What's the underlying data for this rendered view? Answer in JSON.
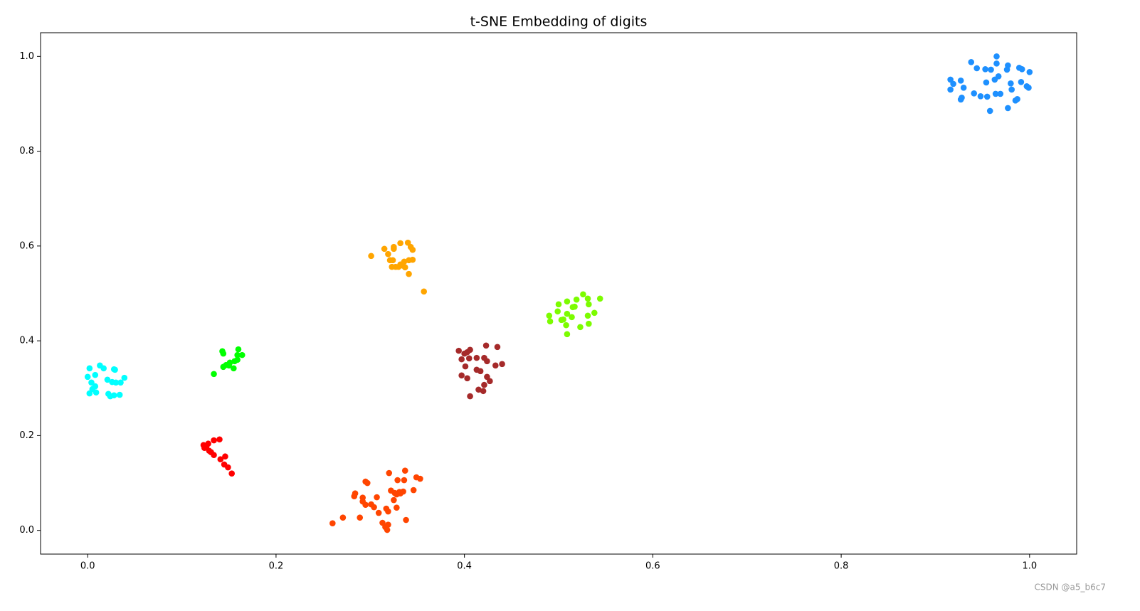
{
  "chart_data": {
    "type": "scatter",
    "title": "t-SNE Embedding of digits",
    "xlim": [
      -0.05,
      1.05
    ],
    "ylim": [
      -0.05,
      1.05
    ],
    "xticks": [
      {
        "value": 0,
        "label": "0.0"
      },
      {
        "value": 0.2,
        "label": "0.2"
      },
      {
        "value": 0.4,
        "label": "0.4"
      },
      {
        "value": 0.6,
        "label": "0.6"
      },
      {
        "value": 0.8,
        "label": "0.8"
      },
      {
        "value": 1,
        "label": "1.0"
      }
    ],
    "yticks": [
      {
        "value": 0,
        "label": "0.0"
      },
      {
        "value": 0.2,
        "label": "0.2"
      },
      {
        "value": 0.4,
        "label": "0.4"
      },
      {
        "value": 0.6,
        "label": "0.6"
      },
      {
        "value": 0.8,
        "label": "0.8"
      },
      {
        "value": 1,
        "label": "1.0"
      }
    ],
    "grid": false,
    "series": [
      {
        "color": "#1e90ff",
        "x": [
          0.965,
          0.938,
          0.944,
          0.953,
          0.959,
          0.977,
          0.989,
          1.0,
          0.965,
          0.976,
          0.916,
          0.927,
          0.919,
          0.916,
          0.93,
          0.954,
          0.963,
          0.967,
          0.98,
          0.991,
          0.997,
          0.999,
          0.941,
          0.948,
          0.955,
          0.964,
          0.969,
          0.981,
          0.927,
          0.928,
          0.958,
          0.977,
          0.985,
          0.987,
          0.992
        ],
        "values": [
          1.0,
          0.988,
          0.975,
          0.973,
          0.972,
          0.981,
          0.976,
          0.967,
          0.985,
          0.972,
          0.951,
          0.949,
          0.942,
          0.93,
          0.934,
          0.945,
          0.951,
          0.958,
          0.943,
          0.946,
          0.937,
          0.934,
          0.922,
          0.916,
          0.915,
          0.921,
          0.921,
          0.93,
          0.909,
          0.913,
          0.885,
          0.891,
          0.907,
          0.91,
          0.973
        ]
      },
      {
        "color": "#ffa500",
        "x": [
          0.301,
          0.315,
          0.319,
          0.325,
          0.325,
          0.332,
          0.34,
          0.343,
          0.345,
          0.321,
          0.324,
          0.327,
          0.332,
          0.336,
          0.341,
          0.345,
          0.323,
          0.33,
          0.334,
          0.341,
          0.357,
          0.337
        ],
        "values": [
          0.579,
          0.594,
          0.583,
          0.598,
          0.594,
          0.606,
          0.607,
          0.598,
          0.592,
          0.57,
          0.57,
          0.556,
          0.561,
          0.567,
          0.57,
          0.571,
          0.556,
          0.556,
          0.559,
          0.541,
          0.504,
          0.555
        ]
      },
      {
        "color": "#7cfc00",
        "x": [
          0.49,
          0.491,
          0.499,
          0.5,
          0.509,
          0.509,
          0.505,
          0.508,
          0.509,
          0.515,
          0.517,
          0.519,
          0.526,
          0.531,
          0.532,
          0.538,
          0.544,
          0.531,
          0.532,
          0.523,
          0.514,
          0.503
        ],
        "values": [
          0.453,
          0.441,
          0.462,
          0.477,
          0.483,
          0.457,
          0.445,
          0.433,
          0.414,
          0.471,
          0.472,
          0.487,
          0.498,
          0.489,
          0.477,
          0.459,
          0.489,
          0.453,
          0.436,
          0.429,
          0.45,
          0.444
        ]
      },
      {
        "color": "#a52a2a",
        "x": [
          0.394,
          0.4,
          0.403,
          0.406,
          0.397,
          0.405,
          0.413,
          0.421,
          0.423,
          0.435,
          0.424,
          0.433,
          0.44,
          0.401,
          0.413,
          0.417,
          0.424,
          0.427,
          0.421,
          0.415,
          0.42,
          0.406,
          0.397,
          0.403
        ],
        "values": [
          0.379,
          0.373,
          0.376,
          0.381,
          0.361,
          0.363,
          0.364,
          0.364,
          0.39,
          0.387,
          0.357,
          0.348,
          0.351,
          0.346,
          0.339,
          0.336,
          0.324,
          0.315,
          0.307,
          0.297,
          0.294,
          0.283,
          0.327,
          0.321
        ]
      },
      {
        "color": "#00ff00",
        "x": [
          0.134,
          0.143,
          0.144,
          0.144,
          0.147,
          0.151,
          0.155,
          0.156,
          0.159,
          0.159,
          0.16,
          0.164,
          0.15
        ],
        "values": [
          0.33,
          0.378,
          0.373,
          0.345,
          0.349,
          0.354,
          0.342,
          0.357,
          0.36,
          0.37,
          0.382,
          0.37,
          0.348
        ]
      },
      {
        "color": "#00ffff",
        "x": [
          0.002,
          0.013,
          0.017,
          0.028,
          0.008,
          0.039,
          0.0,
          0.021,
          0.004,
          0.008,
          0.026,
          0.03,
          0.035,
          0.002,
          0.009,
          0.022,
          0.024,
          0.028,
          0.034,
          0.029,
          0.005
        ],
        "values": [
          0.342,
          0.348,
          0.342,
          0.34,
          0.328,
          0.322,
          0.324,
          0.318,
          0.312,
          0.304,
          0.313,
          0.312,
          0.312,
          0.289,
          0.291,
          0.288,
          0.283,
          0.285,
          0.286,
          0.339,
          0.298
        ]
      },
      {
        "color": "#ff0000",
        "x": [
          0.123,
          0.126,
          0.128,
          0.124,
          0.129,
          0.134,
          0.14,
          0.134,
          0.141,
          0.146,
          0.145,
          0.149,
          0.153,
          0.131
        ],
        "values": [
          0.18,
          0.177,
          0.183,
          0.174,
          0.168,
          0.19,
          0.192,
          0.159,
          0.15,
          0.156,
          0.139,
          0.133,
          0.12,
          0.165
        ]
      },
      {
        "color": "#ff4500",
        "x": [
          0.26,
          0.271,
          0.284,
          0.283,
          0.289,
          0.292,
          0.295,
          0.295,
          0.297,
          0.301,
          0.304,
          0.307,
          0.309,
          0.313,
          0.316,
          0.317,
          0.318,
          0.319,
          0.32,
          0.322,
          0.325,
          0.329,
          0.328,
          0.331,
          0.332,
          0.335,
          0.336,
          0.337,
          0.338,
          0.346,
          0.349,
          0.353,
          0.319,
          0.328,
          0.326,
          0.292
        ],
        "values": [
          0.015,
          0.027,
          0.078,
          0.072,
          0.027,
          0.061,
          0.054,
          0.103,
          0.1,
          0.055,
          0.049,
          0.07,
          0.037,
          0.016,
          0.007,
          0.046,
          0.001,
          0.04,
          0.121,
          0.084,
          0.064,
          0.106,
          0.048,
          0.081,
          0.078,
          0.082,
          0.106,
          0.126,
          0.022,
          0.085,
          0.112,
          0.109,
          0.012,
          0.076,
          0.079,
          0.069
        ]
      }
    ]
  },
  "watermark": "CSDN @a5_b6c7"
}
